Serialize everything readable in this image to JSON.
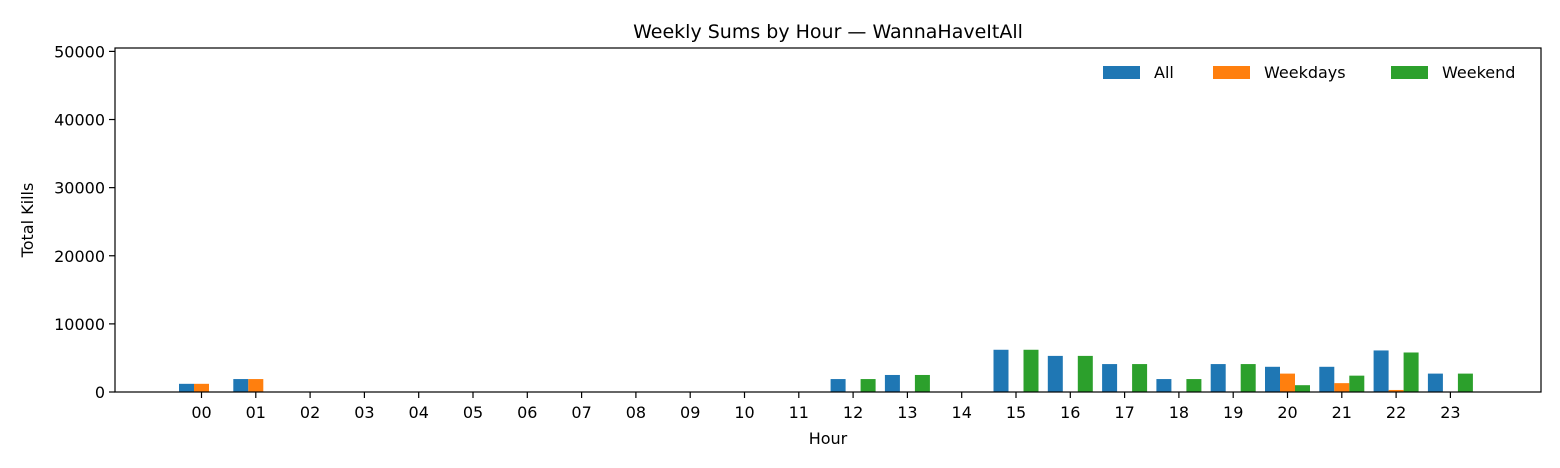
{
  "chart_data": {
    "type": "bar",
    "title": "Weekly Sums by Hour — WannaHaveItAll",
    "xlabel": "Hour",
    "ylabel": "Total Kills",
    "ylim": [
      0,
      50500
    ],
    "yticks": [
      0,
      10000,
      20000,
      30000,
      40000,
      50000
    ],
    "grid": false,
    "legend": "top-right",
    "categories": [
      "00",
      "01",
      "02",
      "03",
      "04",
      "05",
      "06",
      "07",
      "08",
      "09",
      "10",
      "11",
      "12",
      "13",
      "14",
      "15",
      "16",
      "17",
      "18",
      "19",
      "20",
      "21",
      "22",
      "23"
    ],
    "series": [
      {
        "name": "All",
        "color": "#1f77b4",
        "values": [
          1200,
          1900,
          0,
          0,
          0,
          0,
          0,
          0,
          0,
          0,
          0,
          0,
          1900,
          2500,
          0,
          6200,
          5300,
          4100,
          1900,
          4100,
          3700,
          3700,
          6100,
          2700
        ]
      },
      {
        "name": "Weekdays",
        "color": "#ff7f0e",
        "values": [
          1200,
          1900,
          0,
          0,
          0,
          0,
          0,
          0,
          0,
          0,
          0,
          0,
          0,
          0,
          0,
          0,
          0,
          0,
          0,
          0,
          2700,
          1300,
          300,
          0
        ]
      },
      {
        "name": "Weekend",
        "color": "#2ca02c",
        "values": [
          0,
          0,
          0,
          0,
          0,
          0,
          0,
          0,
          0,
          0,
          0,
          0,
          1900,
          2500,
          0,
          6200,
          5300,
          4100,
          1900,
          4100,
          1000,
          2400,
          5800,
          2700
        ]
      }
    ]
  }
}
